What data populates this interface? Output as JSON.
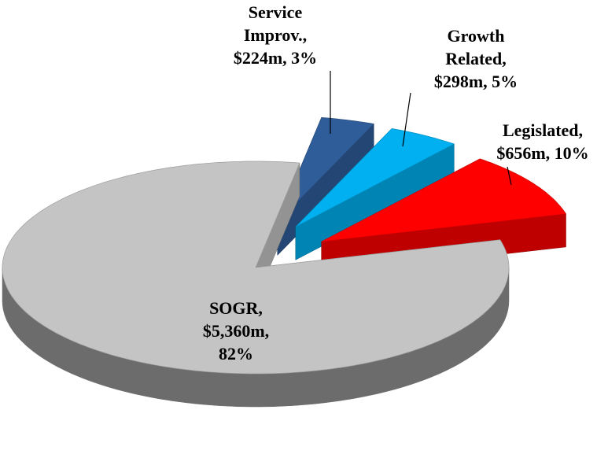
{
  "chart_data": {
    "type": "pie3d",
    "labels": [
      [
        "SOGR,",
        "$5,360m,",
        "82%"
      ],
      [
        "Legislated,",
        "$656m, 10%"
      ],
      [
        "Growth",
        "Related,",
        "$298m, 5%"
      ],
      [
        "Service",
        "Improv.,",
        "$224m, 3%"
      ]
    ],
    "values": [
      5360,
      656,
      298,
      224
    ],
    "colors": [
      "#c4c4c4",
      "#ff0000",
      "#00b0f0",
      "#2f5d9a"
    ]
  }
}
